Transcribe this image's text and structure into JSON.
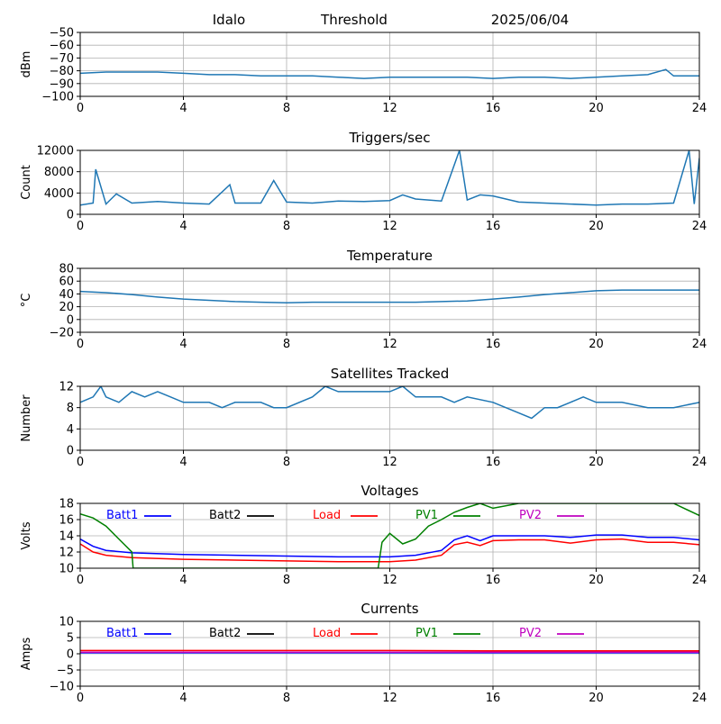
{
  "header": {
    "site": "Idalo",
    "mode": "Threshold",
    "date": "2025/06/04"
  },
  "chart_data": [
    {
      "type": "line",
      "title": "",
      "xlabel": "",
      "ylabel": "dBm",
      "xlim": [
        0,
        24
      ],
      "ylim": [
        -100,
        -50
      ],
      "xticks": [
        "0",
        "4",
        "8",
        "12",
        "16",
        "20",
        "24"
      ],
      "yticks": [
        "−100",
        "−90",
        "−80",
        "−70",
        "−60",
        "−50"
      ],
      "grid": true,
      "series": [
        {
          "color": "#1f77b4",
          "x": [
            0,
            1,
            2,
            3,
            4,
            5,
            6,
            7,
            8,
            9,
            10,
            11,
            12,
            13,
            14,
            15,
            16,
            17,
            18,
            19,
            20,
            21,
            22,
            22.7,
            23,
            24
          ],
          "values": [
            -82,
            -81,
            -81,
            -81,
            -82,
            -83,
            -83,
            -84,
            -84,
            -84,
            -85,
            -86,
            -85,
            -85,
            -85,
            -85,
            -86,
            -85,
            -85,
            -86,
            -85,
            -84,
            -83,
            -79,
            -84,
            -84
          ]
        }
      ]
    },
    {
      "type": "line",
      "title": "Triggers/sec",
      "xlabel": "",
      "ylabel": "Count",
      "xlim": [
        0,
        24
      ],
      "ylim": [
        0,
        12500
      ],
      "xticks": [
        "0",
        "4",
        "8",
        "12",
        "16",
        "20",
        "24"
      ],
      "yticks": [
        "0",
        "4000",
        "8000",
        "12000"
      ],
      "grid": true,
      "series": [
        {
          "color": "#1f77b4",
          "x": [
            0,
            0.5,
            0.6,
            1,
            1.4,
            2,
            3,
            4,
            5,
            5.8,
            6,
            7,
            7.5,
            8,
            9,
            10,
            11,
            12,
            12.5,
            13,
            14,
            14.7,
            15,
            15.5,
            16,
            17,
            18,
            19,
            20,
            21,
            22,
            23,
            23.6,
            23.8,
            24
          ],
          "values": [
            1800,
            2200,
            8800,
            2000,
            4000,
            2200,
            2500,
            2200,
            2000,
            5800,
            2200,
            2200,
            6600,
            2400,
            2200,
            2600,
            2500,
            2700,
            3800,
            3000,
            2600,
            12500,
            2800,
            3800,
            3600,
            2400,
            2200,
            2000,
            1800,
            2000,
            2000,
            2200,
            12500,
            2000,
            11000
          ]
        }
      ]
    },
    {
      "type": "line",
      "title": "Temperature",
      "xlabel": "",
      "ylabel": "°C",
      "xlim": [
        0,
        24
      ],
      "ylim": [
        -20,
        80
      ],
      "xticks": [
        "0",
        "4",
        "8",
        "12",
        "16",
        "20",
        "24"
      ],
      "yticks": [
        "−20",
        "0",
        "20",
        "40",
        "60",
        "80"
      ],
      "grid": true,
      "series": [
        {
          "color": "#1f77b4",
          "x": [
            0,
            1,
            2,
            3,
            4,
            5,
            6,
            7,
            8,
            9,
            10,
            11,
            12,
            13,
            14,
            15,
            16,
            17,
            18,
            19,
            20,
            21,
            22,
            23,
            24
          ],
          "values": [
            44,
            42,
            39,
            35,
            32,
            30,
            28,
            27,
            26,
            27,
            27,
            27,
            27,
            27,
            28,
            29,
            32,
            35,
            39,
            42,
            45,
            46,
            46,
            46,
            46
          ]
        }
      ]
    },
    {
      "type": "line",
      "title": "Satellites Tracked",
      "xlabel": "",
      "ylabel": "Number",
      "xlim": [
        0,
        24
      ],
      "ylim": [
        0,
        12
      ],
      "xticks": [
        "0",
        "4",
        "8",
        "12",
        "16",
        "20",
        "24"
      ],
      "yticks": [
        "0",
        "4",
        "8",
        "12"
      ],
      "grid": true,
      "series": [
        {
          "color": "#1f77b4",
          "x": [
            0,
            0.5,
            0.8,
            1,
            1.5,
            2,
            2.5,
            3,
            3.5,
            4,
            5,
            5.5,
            6,
            7,
            7.5,
            8,
            9,
            9.5,
            10,
            11,
            12,
            12.5,
            13,
            14,
            14.5,
            15,
            16,
            16.5,
            17,
            17.5,
            18,
            18.5,
            19,
            19.5,
            20,
            21,
            22,
            23,
            24
          ],
          "values": [
            9,
            10,
            12,
            10,
            9,
            11,
            10,
            11,
            10,
            9,
            9,
            8,
            9,
            9,
            8,
            8,
            10,
            12,
            11,
            11,
            11,
            12,
            10,
            10,
            9,
            10,
            9,
            8,
            7,
            6,
            8,
            8,
            9,
            10,
            9,
            9,
            8,
            8,
            9
          ]
        }
      ]
    },
    {
      "type": "line",
      "title": "Voltages",
      "xlabel": "",
      "ylabel": "Volts",
      "xlim": [
        0,
        24
      ],
      "ylim": [
        10,
        18
      ],
      "xticks": [
        "0",
        "4",
        "8",
        "12",
        "16",
        "20",
        "24"
      ],
      "yticks": [
        "10",
        "12",
        "14",
        "16",
        "18"
      ],
      "grid": true,
      "legend": "top",
      "series": [
        {
          "name": "Batt1",
          "color": "#0000ff",
          "x": [
            0,
            0.5,
            1,
            2,
            4,
            6,
            8,
            10,
            12,
            13,
            14,
            14.5,
            15,
            15.5,
            16,
            17,
            18,
            19,
            20,
            21,
            22,
            23,
            24
          ],
          "values": [
            13.6,
            12.7,
            12.2,
            11.9,
            11.7,
            11.6,
            11.5,
            11.4,
            11.4,
            11.6,
            12.2,
            13.5,
            14.0,
            13.4,
            14.0,
            14.0,
            14.0,
            13.8,
            14.1,
            14.1,
            13.8,
            13.8,
            13.5
          ]
        },
        {
          "name": "Batt2",
          "color": "#000000",
          "x": [],
          "values": []
        },
        {
          "name": "Load",
          "color": "#ff0000",
          "x": [
            0,
            0.5,
            1,
            2,
            4,
            6,
            8,
            10,
            12,
            13,
            14,
            14.5,
            15,
            15.5,
            16,
            17,
            18,
            19,
            20,
            21,
            22,
            23,
            24
          ],
          "values": [
            13.0,
            12.0,
            11.6,
            11.3,
            11.1,
            11.0,
            10.9,
            10.8,
            10.8,
            11.0,
            11.6,
            12.9,
            13.2,
            12.8,
            13.4,
            13.5,
            13.5,
            13.1,
            13.5,
            13.6,
            13.2,
            13.2,
            12.9
          ]
        },
        {
          "name": "PV1",
          "color": "#008000",
          "x": [
            0,
            0.5,
            1,
            1.5,
            2,
            2.05,
            11.55,
            11.7,
            12,
            12.5,
            13,
            13.5,
            14,
            14.5,
            15,
            15.5,
            16,
            17,
            18,
            19,
            20,
            21,
            22,
            23,
            24
          ],
          "values": [
            16.7,
            16.2,
            15.2,
            13.6,
            12.0,
            10.0,
            10.0,
            13.2,
            14.3,
            13.0,
            13.6,
            15.2,
            16.0,
            16.9,
            17.5,
            18.0,
            17.4,
            18.0,
            18.0,
            18.0,
            18.0,
            18.0,
            18.0,
            18.0,
            16.5
          ]
        },
        {
          "name": "PV2",
          "color": "#bf00bf",
          "x": [],
          "values": []
        }
      ]
    },
    {
      "type": "line",
      "title": "Currents",
      "xlabel": "",
      "ylabel": "Amps",
      "xlim": [
        0,
        24
      ],
      "ylim": [
        -10,
        10
      ],
      "xticks": [
        "0",
        "4",
        "8",
        "12",
        "16",
        "20",
        "24"
      ],
      "yticks": [
        "−10",
        "−5",
        "0",
        "5",
        "10"
      ],
      "grid": true,
      "legend": "top",
      "series": [
        {
          "name": "Batt1",
          "color": "#0000ff",
          "x": [
            0,
            24
          ],
          "values": [
            0.3,
            0.3
          ]
        },
        {
          "name": "Batt2",
          "color": "#000000",
          "x": [],
          "values": []
        },
        {
          "name": "Load",
          "color": "#ff0000",
          "x": [
            0,
            4,
            8,
            12,
            16,
            20,
            24
          ],
          "values": [
            1.0,
            1.0,
            1.0,
            1.0,
            0.9,
            0.9,
            0.9
          ]
        },
        {
          "name": "PV1",
          "color": "#008000",
          "x": [
            0,
            24
          ],
          "values": [
            0.5,
            0.5
          ]
        },
        {
          "name": "PV2",
          "color": "#bf00bf",
          "x": [
            0,
            4,
            8,
            12,
            16,
            20,
            24
          ],
          "values": [
            0.5,
            0.5,
            0.5,
            0.5,
            0.5,
            0.5,
            0.5
          ]
        }
      ]
    }
  ]
}
